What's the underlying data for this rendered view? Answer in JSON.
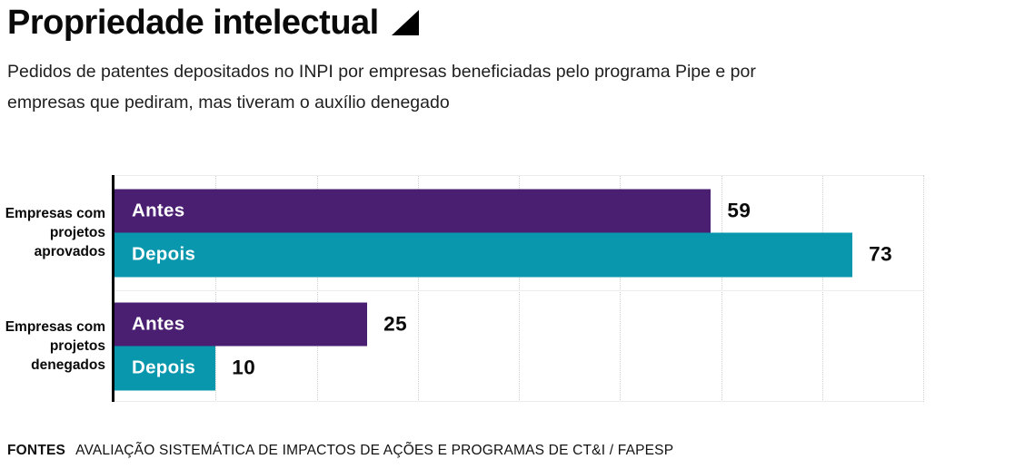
{
  "header": {
    "title": "Propriedade intelectual",
    "title_icon": "lower-right-triangle",
    "subtitle": "Pedidos de patentes depositados no INPI por empresas beneficiadas pelo programa Pipe e por\nempresas que pediram, mas tiveram o auxílio denegado"
  },
  "chart_data": {
    "type": "bar",
    "orientation": "horizontal",
    "title": "Propriedade intelectual",
    "subtitle": "Pedidos de patentes depositados no INPI por empresas beneficiadas pelo programa Pipe e por empresas que pediram, mas tiveram o auxílio denegado",
    "xlabel": "",
    "ylabel": "",
    "xlim": [
      0,
      80
    ],
    "grid_step": 10,
    "grid": "vertical-dotted",
    "value_labels": "outside-end",
    "groups": [
      {
        "category": "Empresas com\nprojetos\naprovados",
        "bars": [
          {
            "label": "Antes",
            "value": 59,
            "color": "#4a1f72"
          },
          {
            "label": "Depois",
            "value": 73,
            "color": "#0897ac"
          }
        ]
      },
      {
        "category": "Empresas com\nprojetos\ndenegados",
        "bars": [
          {
            "label": "Antes",
            "value": 25,
            "color": "#4a1f72"
          },
          {
            "label": "Depois",
            "value": 10,
            "color": "#0897ac"
          }
        ]
      }
    ],
    "colors": {
      "antes": "#4a1f72",
      "depois": "#0897ac",
      "axis": "#000000",
      "gridline": "#cfcfcf"
    }
  },
  "footer": {
    "sources_label": "FONTES",
    "sources_text": "AVALIAÇÃO SISTEMÁTICA DE IMPACTOS DE AÇÕES E PROGRAMAS DE CT&I / FAPESP"
  }
}
